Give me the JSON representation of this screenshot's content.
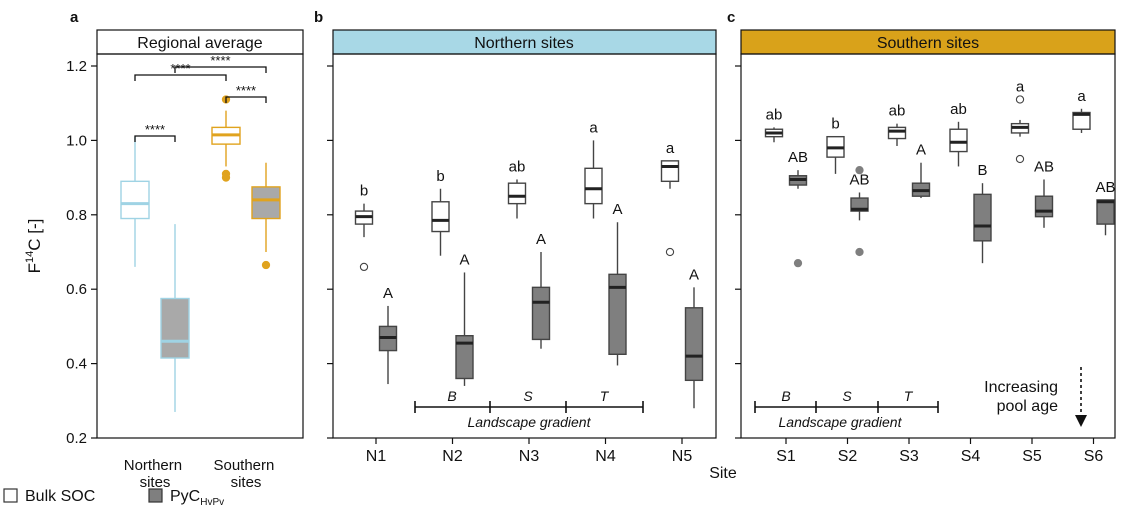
{
  "panels": {
    "a": {
      "letter": "a",
      "title": "Regional average",
      "header_color": "#ffffff",
      "groups": [
        "Northern\nsites",
        "Southern\nsites"
      ]
    },
    "b": {
      "letter": "b",
      "title": "Northern sites",
      "header_color": "#a8d8e6"
    },
    "c": {
      "letter": "c",
      "title": "Southern sites",
      "header_color": "#d9a21a"
    }
  },
  "axis": {
    "ylabel_main": "F",
    "ylabel_sup": "14",
    "ylabel_tail": "C [-]",
    "xlabel": "Site"
  },
  "landscape": {
    "label": "Landscape gradient",
    "stages": [
      "B",
      "S",
      "T"
    ]
  },
  "pool_age": {
    "line1": "Increasing",
    "line2": "pool age"
  },
  "legend": {
    "bulk_label": "Bulk SOC",
    "pyc_main": "PyC",
    "pyc_sub": "HvPv"
  },
  "colors": {
    "north": "#9fd3e4",
    "south": "#e0a31e",
    "bulk_fill": "#ffffff",
    "pyc_fill": "#7f7f7f",
    "pyc_fill_avg": "#a9a9a9",
    "outline": "#444444",
    "median": "#222222"
  },
  "significance": [
    {
      "label": "****",
      "between": [
        "Northern sites bulk",
        "Southern sites bulk"
      ]
    },
    {
      "label": "****",
      "between": [
        "Northern sites PyC",
        "Southern sites PyC"
      ]
    },
    {
      "label": "****",
      "between": [
        "Southern sites bulk",
        "Southern sites PyC"
      ]
    },
    {
      "label": "****",
      "between": [
        "Northern sites bulk",
        "Northern sites PyC"
      ]
    }
  ],
  "chart_data": [
    {
      "type": "box",
      "panel": "a",
      "ylim": [
        0.2,
        1.25
      ],
      "yticks": [
        0.2,
        0.4,
        0.6,
        0.8,
        1.0,
        1.2
      ],
      "categories": [
        "Northern sites",
        "Southern sites"
      ],
      "series": [
        {
          "name": "Bulk SOC",
          "boxes": [
            {
              "category": "Northern sites",
              "min": 0.66,
              "q1": 0.79,
              "median": 0.83,
              "q3": 0.89,
              "max": 1.01,
              "outliers": []
            },
            {
              "category": "Southern sites",
              "min": 0.93,
              "q1": 0.99,
              "median": 1.015,
              "q3": 1.035,
              "max": 1.08,
              "outliers": [
                1.11,
                0.91,
                0.9
              ]
            }
          ]
        },
        {
          "name": "PyC HvPv",
          "boxes": [
            {
              "category": "Northern sites",
              "min": 0.27,
              "q1": 0.415,
              "median": 0.46,
              "q3": 0.575,
              "max": 0.775,
              "outliers": []
            },
            {
              "category": "Southern sites",
              "min": 0.7,
              "q1": 0.79,
              "median": 0.84,
              "q3": 0.875,
              "max": 0.94,
              "outliers": [
                0.665
              ]
            }
          ]
        }
      ]
    },
    {
      "type": "box",
      "panel": "b",
      "categories": [
        "N1",
        "N2",
        "N3",
        "N4",
        "N5"
      ],
      "series": [
        {
          "name": "Bulk SOC",
          "boxes": [
            {
              "category": "N1",
              "min": 0.74,
              "q1": 0.775,
              "median": 0.795,
              "q3": 0.81,
              "max": 0.83,
              "outliers": [
                0.66
              ],
              "letter": "b"
            },
            {
              "category": "N2",
              "min": 0.69,
              "q1": 0.755,
              "median": 0.785,
              "q3": 0.835,
              "max": 0.87,
              "outliers": [],
              "letter": "b"
            },
            {
              "category": "N3",
              "min": 0.79,
              "q1": 0.83,
              "median": 0.85,
              "q3": 0.885,
              "max": 0.895,
              "outliers": [],
              "letter": "ab"
            },
            {
              "category": "N4",
              "min": 0.79,
              "q1": 0.83,
              "median": 0.87,
              "q3": 0.925,
              "max": 1.0,
              "outliers": [],
              "letter": "a"
            },
            {
              "category": "N5",
              "min": 0.87,
              "q1": 0.89,
              "median": 0.93,
              "q3": 0.945,
              "max": 0.945,
              "outliers": [
                0.7
              ],
              "letter": "a"
            }
          ]
        },
        {
          "name": "PyC HvPv",
          "boxes": [
            {
              "category": "N1",
              "min": 0.345,
              "q1": 0.435,
              "median": 0.47,
              "q3": 0.5,
              "max": 0.555,
              "outliers": [],
              "letter": "A"
            },
            {
              "category": "N2",
              "min": 0.34,
              "q1": 0.36,
              "median": 0.455,
              "q3": 0.475,
              "max": 0.645,
              "outliers": [],
              "letter": "A"
            },
            {
              "category": "N3",
              "min": 0.44,
              "q1": 0.465,
              "median": 0.565,
              "q3": 0.605,
              "max": 0.7,
              "outliers": [],
              "letter": "A"
            },
            {
              "category": "N4",
              "min": 0.395,
              "q1": 0.425,
              "median": 0.605,
              "q3": 0.64,
              "max": 0.78,
              "outliers": [],
              "letter": "A"
            },
            {
              "category": "N5",
              "min": 0.28,
              "q1": 0.355,
              "median": 0.42,
              "q3": 0.55,
              "max": 0.605,
              "outliers": [],
              "letter": "A"
            }
          ]
        }
      ]
    },
    {
      "type": "box",
      "panel": "c",
      "categories": [
        "S1",
        "S2",
        "S3",
        "S4",
        "S5",
        "S6"
      ],
      "series": [
        {
          "name": "Bulk SOC",
          "boxes": [
            {
              "category": "S1",
              "min": 0.995,
              "q1": 1.01,
              "median": 1.02,
              "q3": 1.03,
              "max": 1.035,
              "outliers": [],
              "letter": "ab"
            },
            {
              "category": "S2",
              "min": 0.91,
              "q1": 0.955,
              "median": 0.98,
              "q3": 1.01,
              "max": 1.01,
              "outliers": [],
              "letter": "b"
            },
            {
              "category": "S3",
              "min": 0.985,
              "q1": 1.005,
              "median": 1.025,
              "q3": 1.035,
              "max": 1.045,
              "outliers": [],
              "letter": "ab"
            },
            {
              "category": "S4",
              "min": 0.93,
              "q1": 0.97,
              "median": 0.995,
              "q3": 1.03,
              "max": 1.05,
              "outliers": [],
              "letter": "ab"
            },
            {
              "category": "S5",
              "min": 1.01,
              "q1": 1.02,
              "median": 1.035,
              "q3": 1.045,
              "max": 1.055,
              "outliers": [
                1.11,
                0.95
              ],
              "letter": "a"
            },
            {
              "category": "S6",
              "min": 1.02,
              "q1": 1.03,
              "median": 1.07,
              "q3": 1.075,
              "max": 1.085,
              "outliers": [],
              "letter": "a"
            }
          ]
        },
        {
          "name": "PyC HvPv",
          "boxes": [
            {
              "category": "S1",
              "min": 0.87,
              "q1": 0.88,
              "median": 0.895,
              "q3": 0.905,
              "max": 0.92,
              "outliers": [
                0.67
              ],
              "letter": "AB"
            },
            {
              "category": "S2",
              "min": 0.785,
              "q1": 0.81,
              "median": 0.815,
              "q3": 0.845,
              "max": 0.86,
              "outliers": [
                0.92,
                0.7
              ],
              "letter": "AB"
            },
            {
              "category": "S3",
              "min": 0.845,
              "q1": 0.85,
              "median": 0.865,
              "q3": 0.885,
              "max": 0.94,
              "outliers": [],
              "letter": "A"
            },
            {
              "category": "S4",
              "min": 0.67,
              "q1": 0.73,
              "median": 0.77,
              "q3": 0.855,
              "max": 0.885,
              "outliers": [],
              "letter": "B"
            },
            {
              "category": "S5",
              "min": 0.765,
              "q1": 0.795,
              "median": 0.81,
              "q3": 0.85,
              "max": 0.895,
              "outliers": [],
              "letter": "AB"
            },
            {
              "category": "S6",
              "min": 0.745,
              "q1": 0.775,
              "median": 0.835,
              "q3": 0.84,
              "max": 0.84,
              "outliers": [],
              "letter": "AB"
            }
          ]
        }
      ]
    }
  ]
}
